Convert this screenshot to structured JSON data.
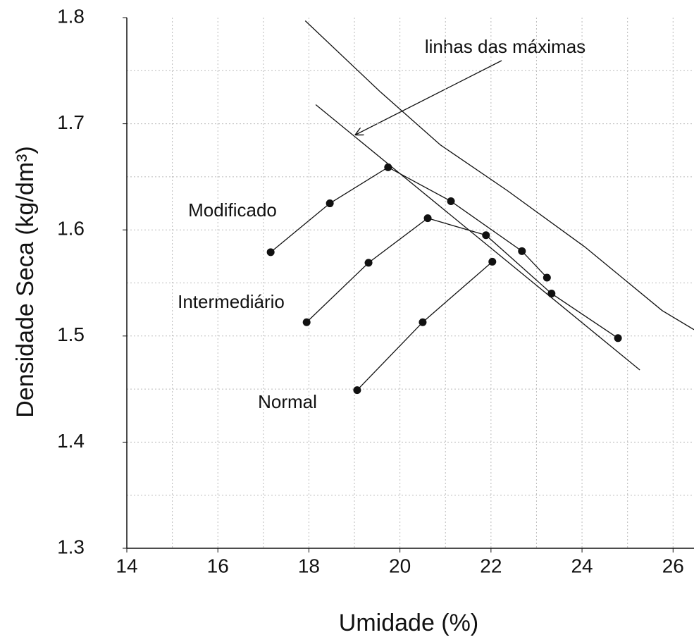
{
  "chart_data": {
    "type": "line",
    "xlabel": "Umidade (%)",
    "ylabel": "Densidade Seca (kg/dm³)",
    "xlim": [
      14,
      26.46
    ],
    "ylim": [
      1.3,
      1.8
    ],
    "xticks": [
      14,
      16,
      18,
      20,
      22,
      24,
      26
    ],
    "yticks": [
      1.3,
      1.4,
      1.5,
      1.6,
      1.7,
      1.8
    ],
    "xgrid": [
      15,
      16,
      17,
      18,
      19,
      20,
      21,
      22,
      23,
      24,
      25,
      26
    ],
    "ygrid": [
      1.35,
      1.4,
      1.45,
      1.5,
      1.55,
      1.6,
      1.65,
      1.7,
      1.75
    ],
    "color": "#111111",
    "series": [
      {
        "name": "Modificado",
        "x": [
          17.16,
          18.46,
          19.74,
          21.12,
          22.68,
          23.23
        ],
        "values": [
          1.579,
          1.625,
          1.659,
          1.627,
          1.58,
          1.555
        ]
      },
      {
        "name": "Intermediário",
        "x": [
          17.95,
          19.31,
          20.61,
          21.89,
          23.33,
          24.79
        ],
        "values": [
          1.513,
          1.569,
          1.611,
          1.595,
          1.54,
          1.498
        ]
      },
      {
        "name": "Normal",
        "x": [
          19.06,
          20.5,
          22.03
        ],
        "values": [
          1.449,
          1.513,
          1.57
        ]
      }
    ],
    "reference_lines": [
      {
        "x": [
          18.15,
          25.27
        ],
        "values": [
          1.718,
          1.468
        ]
      },
      {
        "x": [
          17.92,
          19.57,
          20.89,
          22.36,
          24.06,
          25.76,
          26.46
        ],
        "values": [
          1.797,
          1.73,
          1.68,
          1.637,
          1.584,
          1.524,
          1.506
        ]
      }
    ],
    "annotation": "linhas das máximas"
  }
}
